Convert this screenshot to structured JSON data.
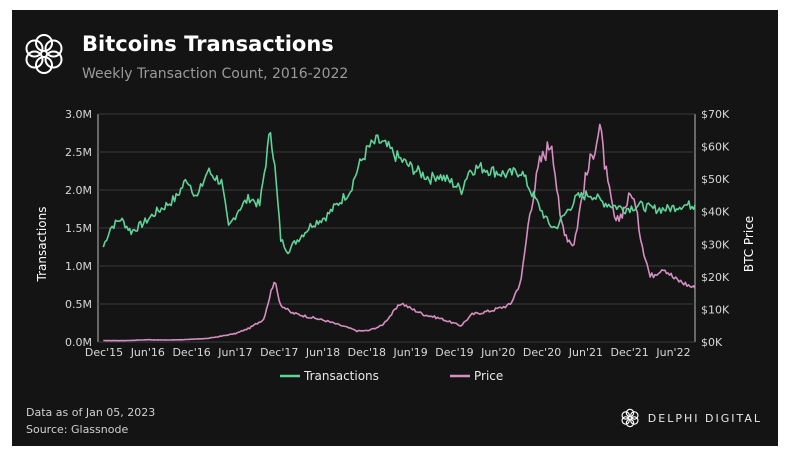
{
  "header": {
    "title": "Bitcoins Transactions",
    "subtitle": "Weekly Transaction Count, 2016-2022"
  },
  "footer": {
    "data_as_of": "Data as of Jan 05, 2023",
    "source": "Source: Glassnode",
    "brand": "DELPHI DIGITAL"
  },
  "colors": {
    "background": "#141414",
    "transactions": "#5ed39a",
    "price": "#d48fc0",
    "grid": "#3a3a3a"
  },
  "chart_data": {
    "type": "line",
    "x_tick_labels": [
      "Dec'15",
      "Jun'16",
      "Dec'16",
      "Jun'17",
      "Dec'17",
      "Jun'18",
      "Dec'18",
      "Jun'19",
      "Dec'19",
      "Jun'20",
      "Dec'20",
      "Jun'21",
      "Dec'21",
      "Jun'22"
    ],
    "ylabel_left": "Transactions",
    "ylabel_right": "BTC Price",
    "ylim_left": [
      0,
      3000000
    ],
    "ylim_right": [
      0,
      70000
    ],
    "yticks_left": [
      "0.0M",
      "0.5M",
      "1.0M",
      "1.5M",
      "2.0M",
      "2.5M",
      "3.0M"
    ],
    "yticks_right": [
      "$0K",
      "$10K",
      "$20K",
      "$30K",
      "$40K",
      "$50K",
      "$60K",
      "$70K"
    ],
    "grid": true,
    "legend_position": "bottom",
    "series": [
      {
        "name": "Transactions",
        "axis": "left",
        "x": [
          "2015-12-01",
          "2016-01-01",
          "2016-02-15",
          "2016-04-01",
          "2016-06-01",
          "2016-07-15",
          "2016-09-01",
          "2016-10-15",
          "2016-12-01",
          "2017-01-15",
          "2017-03-01",
          "2017-05-01",
          "2017-06-01",
          "2017-07-15",
          "2017-09-01",
          "2017-10-15",
          "2017-12-01",
          "2017-12-20",
          "2018-01-15",
          "2018-02-15",
          "2018-03-15",
          "2018-05-01",
          "2018-06-01",
          "2018-08-01",
          "2018-10-01",
          "2018-11-15",
          "2018-12-20",
          "2019-02-01",
          "2019-03-15",
          "2019-05-01",
          "2019-06-01",
          "2019-07-15",
          "2019-09-01",
          "2019-11-01",
          "2019-12-01",
          "2020-02-01",
          "2020-03-15",
          "2020-04-15",
          "2020-06-01",
          "2020-08-01",
          "2020-10-01",
          "2020-12-01",
          "2021-01-10",
          "2021-02-15",
          "2021-04-01",
          "2021-05-01",
          "2021-06-15",
          "2021-08-01",
          "2021-10-01",
          "2021-11-15",
          "2022-01-01",
          "2022-03-01",
          "2022-05-01",
          "2022-07-01",
          "2022-09-01",
          "2022-11-01",
          "2022-12-31"
        ],
        "y": [
          1250000,
          1500000,
          1620000,
          1450000,
          1580000,
          1700000,
          1800000,
          1900000,
          2150000,
          1900000,
          2250000,
          2100000,
          1500000,
          1750000,
          1900000,
          1800000,
          2800000,
          2300000,
          1350000,
          1200000,
          1300000,
          1450000,
          1550000,
          1650000,
          1850000,
          2000000,
          2300000,
          2550000,
          2650000,
          2550000,
          2450000,
          2350000,
          2250000,
          2150000,
          2200000,
          2100000,
          2000000,
          2250000,
          2300000,
          2250000,
          2200000,
          2250000,
          2000000,
          1800000,
          1550000,
          1500000,
          1700000,
          1900000,
          1950000,
          1850000,
          1800000,
          1750000,
          1800000,
          1750000,
          1750000,
          1800000,
          1800000
        ]
      },
      {
        "name": "Price",
        "axis": "right",
        "x": [
          "2015-12-01",
          "2016-03-01",
          "2016-06-15",
          "2016-09-01",
          "2016-12-01",
          "2017-03-01",
          "2017-05-01",
          "2017-07-01",
          "2017-09-01",
          "2017-11-01",
          "2017-12-17",
          "2018-01-15",
          "2018-03-01",
          "2018-05-01",
          "2018-08-01",
          "2018-11-01",
          "2018-12-15",
          "2019-02-01",
          "2019-04-01",
          "2019-06-26",
          "2019-08-01",
          "2019-10-01",
          "2019-12-15",
          "2020-03-12",
          "2020-05-01",
          "2020-07-15",
          "2020-09-01",
          "2020-10-15",
          "2020-12-01",
          "2021-01-08",
          "2021-02-20",
          "2021-04-14",
          "2021-05-20",
          "2021-06-22",
          "2021-07-20",
          "2021-09-01",
          "2021-11-10",
          "2021-12-15",
          "2022-01-20",
          "2022-03-01",
          "2022-04-01",
          "2022-05-15",
          "2022-06-18",
          "2022-08-15",
          "2022-10-01",
          "2022-12-31"
        ],
        "y": [
          430,
          420,
          700,
          600,
          750,
          1100,
          1800,
          2600,
          4300,
          7000,
          19000,
          11500,
          9000,
          8000,
          6500,
          4500,
          3400,
          3500,
          5000,
          12000,
          10500,
          8500,
          7200,
          5000,
          8500,
          9500,
          10500,
          11500,
          19000,
          40000,
          55000,
          62000,
          38000,
          32000,
          30000,
          48000,
          66000,
          48000,
          36000,
          42000,
          46000,
          30000,
          20000,
          23000,
          19500,
          16500
        ]
      }
    ]
  }
}
